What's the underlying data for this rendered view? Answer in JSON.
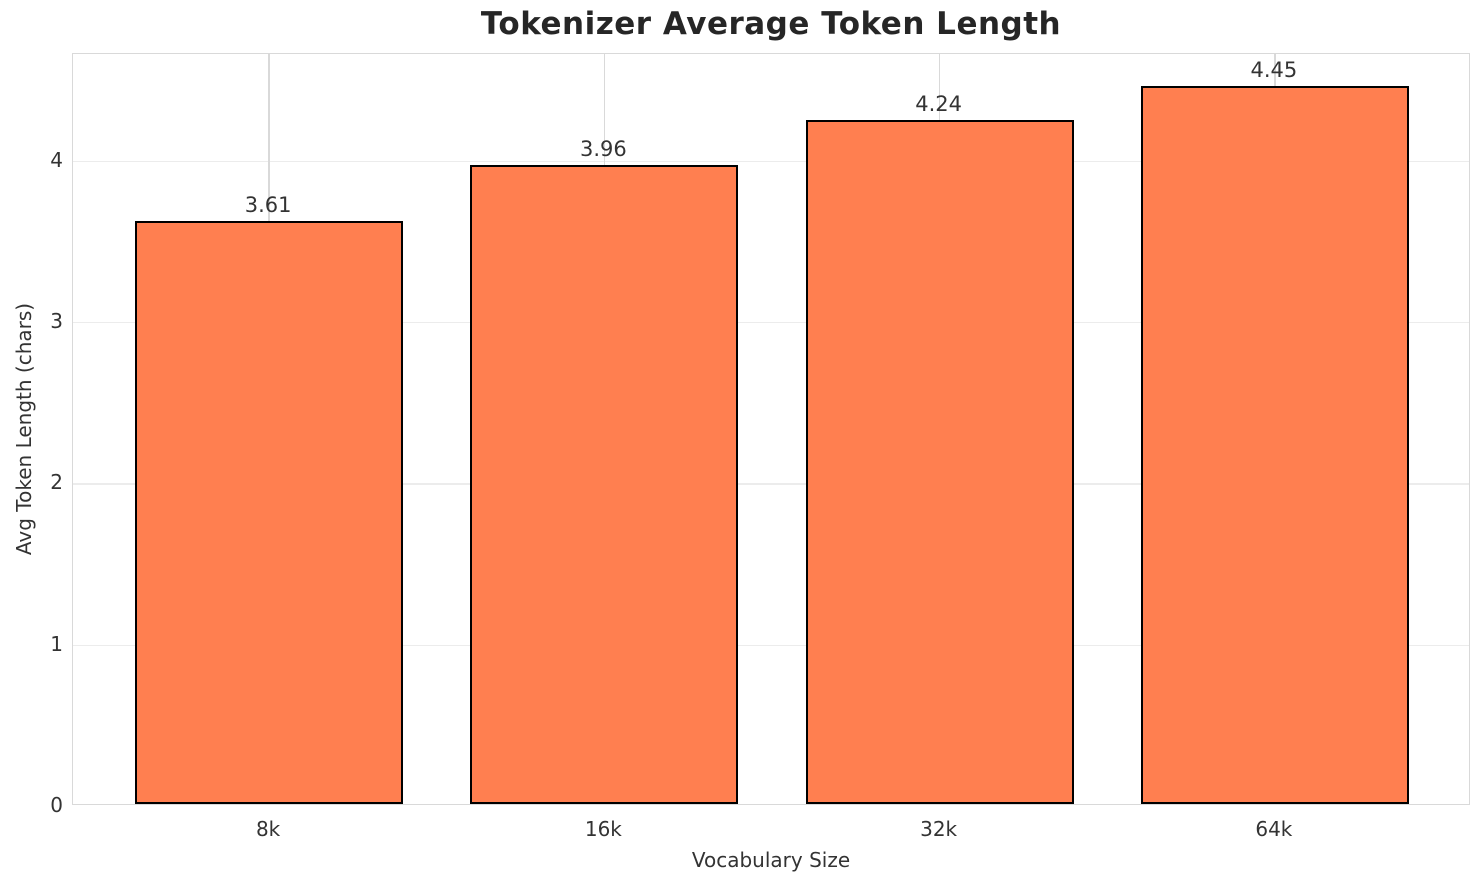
{
  "chart_data": {
    "type": "bar",
    "title": "Tokenizer Average Token Length",
    "xlabel": "Vocabulary Size",
    "ylabel": "Avg Token Length (chars)",
    "categories": [
      "8k",
      "16k",
      "32k",
      "64k"
    ],
    "values": [
      3.61,
      3.96,
      4.24,
      4.45
    ],
    "value_labels": [
      "3.61",
      "3.96",
      "4.24",
      "4.45"
    ],
    "yticks": [
      0,
      1,
      2,
      3,
      4
    ],
    "ylim": [
      0,
      4.66
    ],
    "xlim": [
      -0.585,
      3.585
    ],
    "bar_width_units": 0.8,
    "grid": "both",
    "legend": "none",
    "colors": {
      "bar_fill": "#FF7F50",
      "bar_edge": "#000000",
      "hgrid": "#ececec",
      "vgrid": "#d9d9d9",
      "spine": "#d9d9d9",
      "title_text": "#262626",
      "tick_text": "#333333"
    }
  }
}
